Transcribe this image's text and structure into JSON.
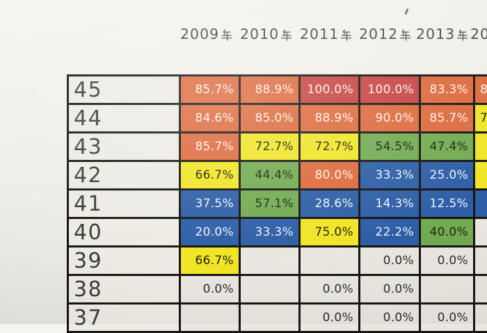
{
  "document": {
    "kind": "photographed printed spreadsheet of yearly percentages",
    "paper_color": "#efede7",
    "grid_line_color": "#161411"
  },
  "palette": {
    "orange": "#dd6a3d",
    "red": "#c64441",
    "yellow": "#f0e526",
    "green": "#72ab51",
    "blue": "#2e5fa6",
    "white_cell": "#e9e7e0"
  },
  "header": {
    "years": [
      "2009",
      "2010",
      "2011",
      "2012",
      "2013",
      "20"
    ],
    "year_suffix": "年"
  },
  "artifacts": {
    "ink_speck": "small-diagonal-speck"
  },
  "table": {
    "rows": [
      {
        "label": "45",
        "cells": [
          {
            "v": "85.7%",
            "c": "orange"
          },
          {
            "v": "88.9%",
            "c": "orange"
          },
          {
            "v": "100.0%",
            "c": "red"
          },
          {
            "v": "100.0%",
            "c": "red"
          },
          {
            "v": "83.3%",
            "c": "orange"
          },
          {
            "v": "8",
            "c": "orange",
            "partial": true
          }
        ]
      },
      {
        "label": "44",
        "cells": [
          {
            "v": "84.6%",
            "c": "orange"
          },
          {
            "v": "85.0%",
            "c": "orange"
          },
          {
            "v": "88.9%",
            "c": "orange"
          },
          {
            "v": "90.0%",
            "c": "orange"
          },
          {
            "v": "85.7%",
            "c": "orange"
          },
          {
            "v": "7",
            "c": "yellow",
            "partial": true
          }
        ]
      },
      {
        "label": "43",
        "cells": [
          {
            "v": "85.7%",
            "c": "orange"
          },
          {
            "v": "72.7%",
            "c": "yellow"
          },
          {
            "v": "72.7%",
            "c": "yellow"
          },
          {
            "v": "54.5%",
            "c": "green"
          },
          {
            "v": "47.4%",
            "c": "green"
          },
          {
            "v": "",
            "c": "yellow",
            "partial": true
          }
        ]
      },
      {
        "label": "42",
        "cells": [
          {
            "v": "66.7%",
            "c": "yellow"
          },
          {
            "v": "44.4%",
            "c": "green"
          },
          {
            "v": "80.0%",
            "c": "orange"
          },
          {
            "v": "33.3%",
            "c": "blue"
          },
          {
            "v": "25.0%",
            "c": "blue"
          },
          {
            "v": "",
            "c": "yellow",
            "partial": true
          }
        ]
      },
      {
        "label": "41",
        "cells": [
          {
            "v": "37.5%",
            "c": "blue"
          },
          {
            "v": "57.1%",
            "c": "green"
          },
          {
            "v": "28.6%",
            "c": "blue"
          },
          {
            "v": "14.3%",
            "c": "blue"
          },
          {
            "v": "12.5%",
            "c": "blue"
          },
          {
            "v": "",
            "c": "blue",
            "partial": true
          }
        ]
      },
      {
        "label": "40",
        "cells": [
          {
            "v": "20.0%",
            "c": "blue"
          },
          {
            "v": "33.3%",
            "c": "blue"
          },
          {
            "v": "75.0%",
            "c": "yellow"
          },
          {
            "v": "22.2%",
            "c": "blue"
          },
          {
            "v": "40.0%",
            "c": "green"
          },
          {
            "v": "",
            "c": "white",
            "partial": true
          }
        ]
      },
      {
        "label": "39",
        "cells": [
          {
            "v": "66.7%",
            "c": "yellow"
          },
          {
            "v": "",
            "c": "white"
          },
          {
            "v": "",
            "c": "white"
          },
          {
            "v": "0.0%",
            "c": "white"
          },
          {
            "v": "0.0%",
            "c": "white"
          },
          {
            "v": "",
            "c": "white",
            "partial": true
          }
        ]
      },
      {
        "label": "38",
        "cells": [
          {
            "v": "0.0%",
            "c": "white"
          },
          {
            "v": "",
            "c": "white"
          },
          {
            "v": "0.0%",
            "c": "white"
          },
          {
            "v": "0.0%",
            "c": "white"
          },
          {
            "v": "",
            "c": "white"
          },
          {
            "v": "",
            "c": "white",
            "partial": true
          }
        ]
      },
      {
        "label": "37",
        "cells": [
          {
            "v": "",
            "c": "white"
          },
          {
            "v": "",
            "c": "white"
          },
          {
            "v": "0.0%",
            "c": "white"
          },
          {
            "v": "0.0%",
            "c": "white"
          },
          {
            "v": "0.0%",
            "c": "white"
          },
          {
            "v": "",
            "c": "white",
            "partial": true
          }
        ]
      }
    ]
  }
}
